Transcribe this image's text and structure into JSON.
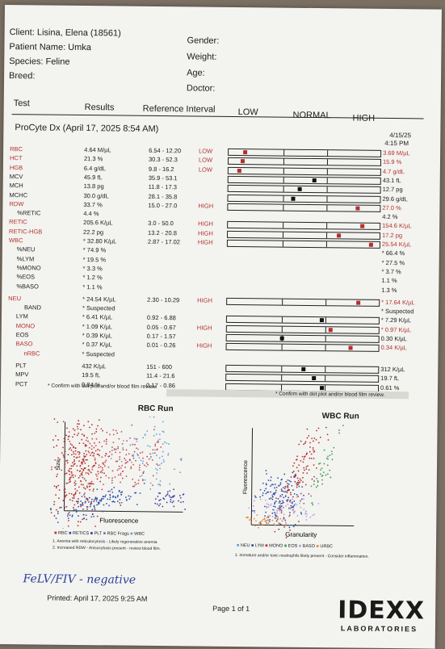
{
  "patient": {
    "client": "Client: Lisina, Elena (18561)",
    "name": "Patient Name: Umka",
    "species": "Species: Feline",
    "breed": "Breed:",
    "gender": "Gender:",
    "weight": "Weight:",
    "age": "Age:",
    "doctor": "Doctor:"
  },
  "columns": {
    "test": "Test",
    "results": "Results",
    "ref": "Reference Interval",
    "low": "LOW",
    "normal": "NORMAL",
    "high": "HIGH"
  },
  "run": {
    "title": "ProCyte Dx (April 17, 2025 8:54 AM)",
    "prev_date": "4/15/25",
    "prev_time": "4:15 PM"
  },
  "groups": [
    {
      "rows": [
        {
          "name": "RBC",
          "result": "4.64 M/µL",
          "ref": "6.54 - 12.20",
          "flag": "LOW",
          "prev": "3.69 M/µL",
          "red": true,
          "marker": 0.1
        },
        {
          "name": "HCT",
          "result": "21.3 %",
          "ref": "30.3 - 52.3",
          "flag": "LOW",
          "prev": "15.9 %",
          "red": true,
          "marker": 0.08
        },
        {
          "name": "HGB",
          "result": "6.4 g/dL",
          "ref": "9.8 - 16.2",
          "flag": "LOW",
          "prev": "4.7 g/dL",
          "red": true,
          "marker": 0.06
        },
        {
          "name": "MCV",
          "result": "45.9 fL",
          "ref": "35.9 - 53.1",
          "flag": "",
          "prev": "43.1 fL",
          "red": false,
          "marker": 0.57
        },
        {
          "name": "MCH",
          "result": "13.8 pg",
          "ref": "11.8 - 17.3",
          "flag": "",
          "prev": "12.7 pg",
          "red": false,
          "marker": 0.47
        },
        {
          "name": "MCHC",
          "result": "30.0 g/dL",
          "ref": "28.1 - 35.8",
          "flag": "",
          "prev": "29.6 g/dL",
          "red": false,
          "marker": 0.43
        },
        {
          "name": "RDW",
          "result": "33.7 %",
          "ref": "15.0 - 27.0",
          "flag": "HIGH",
          "prev": "27.0 %",
          "red": true,
          "marker": 0.87
        },
        {
          "name": "%RETIC",
          "result": "4.4 %",
          "ref": "",
          "flag": "",
          "prev": "4.2 %",
          "red": false,
          "marker": null
        },
        {
          "name": "RETIC",
          "result": "205.6 K/µL",
          "ref": "3.0 - 50.0",
          "flag": "HIGH",
          "prev": "154.6 K/µL",
          "red": true,
          "marker": 0.9
        },
        {
          "name": "RETIC-HGB",
          "result": "22.2 pg",
          "ref": "13.2 - 20.8",
          "flag": "HIGH",
          "prev": "17.2 pg",
          "red": true,
          "marker": 0.74
        },
        {
          "name": "WBC",
          "result": "* 32.80 K/µL",
          "ref": "2.87 - 17.02",
          "flag": "HIGH",
          "prev": "25.54 K/µL",
          "red": true,
          "marker": 0.96
        },
        {
          "name": "%NEU",
          "result": "* 74.9 %",
          "ref": "",
          "flag": "",
          "prev": "* 66.4 %",
          "red": false,
          "marker": null
        },
        {
          "name": "%LYM",
          "result": "* 19.5 %",
          "ref": "",
          "flag": "",
          "prev": "* 27.5 %",
          "red": false,
          "marker": null
        },
        {
          "name": "%MONO",
          "result": "* 3.3 %",
          "ref": "",
          "flag": "",
          "prev": "* 3.7 %",
          "red": false,
          "marker": null
        },
        {
          "name": "%EOS",
          "result": "* 1.2 %",
          "ref": "",
          "flag": "",
          "prev": "1.1 %",
          "red": false,
          "marker": null
        },
        {
          "name": "%BASO",
          "result": "* 1.1 %",
          "ref": "",
          "flag": "",
          "prev": "1.3 %",
          "red": false,
          "marker": null
        },
        {
          "name": "NEU",
          "result": "* 24.54 K/µL",
          "ref": "2.30 - 10.29",
          "flag": "HIGH",
          "prev": "* 17.64 K/µL",
          "red": true,
          "marker": 0.88
        },
        {
          "name": "BAND",
          "result": "* Suspected",
          "ref": "",
          "flag": "",
          "prev": "* Suspected",
          "red": false,
          "marker": null
        },
        {
          "name": "LYM",
          "result": "* 6.41 K/µL",
          "ref": "0.92 - 6.88",
          "flag": "",
          "prev": "* 7.29 K/µL",
          "red": false,
          "marker": 0.63
        },
        {
          "name": "MONO",
          "result": "* 1.09 K/µL",
          "ref": "0.05 - 0.67",
          "flag": "HIGH",
          "prev": "* 0.97 K/µL",
          "red": true,
          "marker": 0.69
        },
        {
          "name": "EOS",
          "result": "* 0.39 K/µL",
          "ref": "0.17 - 1.57",
          "flag": "",
          "prev": "0.30 K/µL",
          "red": false,
          "marker": 0.36
        },
        {
          "name": "BASO",
          "result": "* 0.37 K/µL",
          "ref": "0.01 - 0.26",
          "flag": "HIGH",
          "prev": "0.34 K/µL",
          "red": true,
          "marker": 0.83
        },
        {
          "name": "nRBC",
          "result": "* Suspected",
          "ref": "",
          "flag": "",
          "prev": "",
          "red": true,
          "marker": null
        },
        {
          "name": "PLT",
          "result": "432 K/µL",
          "ref": "151 - 600",
          "flag": "",
          "prev": "312 K/µL",
          "red": false,
          "marker": 0.51
        },
        {
          "name": "MPV",
          "result": "19.5 fL",
          "ref": "11.4 - 21.6",
          "flag": "",
          "prev": "19.7 fL",
          "red": false,
          "marker": 0.58
        },
        {
          "name": "PCT",
          "result": "0.84 %",
          "ref": "0.17 - 0.86",
          "flag": "",
          "prev": "0.61 %",
          "red": false,
          "marker": 0.64
        }
      ]
    }
  ],
  "notes": {
    "confirm_left": "* Confirm with dot plot and/or blood film review.",
    "confirm_right": "* Confirm with dot plot and/or blood film review."
  },
  "rbc_run": {
    "title": "RBC Run",
    "ylabel": "Size",
    "xlabel": "Fluorescence",
    "legend": [
      "RBC",
      "RETICS",
      "PLT",
      "RBC Frags",
      "WBC"
    ],
    "comments": [
      "1. Anemia with reticulocytosis - Likely regenerative anemia",
      "2. Increased RDW - Anisocytosis present - review blood film."
    ]
  },
  "wbc_run": {
    "title": "WBC Run",
    "ylabel": "Fluorescence",
    "xlabel": "Granularity",
    "legend": [
      "NEU",
      "LYM",
      "MONO",
      "EOS",
      "BASO",
      "URBC"
    ],
    "comments": [
      "1. Immature and/or toxic neutrophils likely present - Consider inflammation."
    ]
  },
  "handwritten": "FeLV/FIV - negative",
  "footer": {
    "printed": "Printed: April 17, 2025 9:25 AM",
    "page": "Page 1 of 1",
    "logo": "IDEXX",
    "logo_sub": "LABORATORIES"
  },
  "colors": {
    "flag_red": "#b3302c",
    "marker_black": "#111111"
  }
}
